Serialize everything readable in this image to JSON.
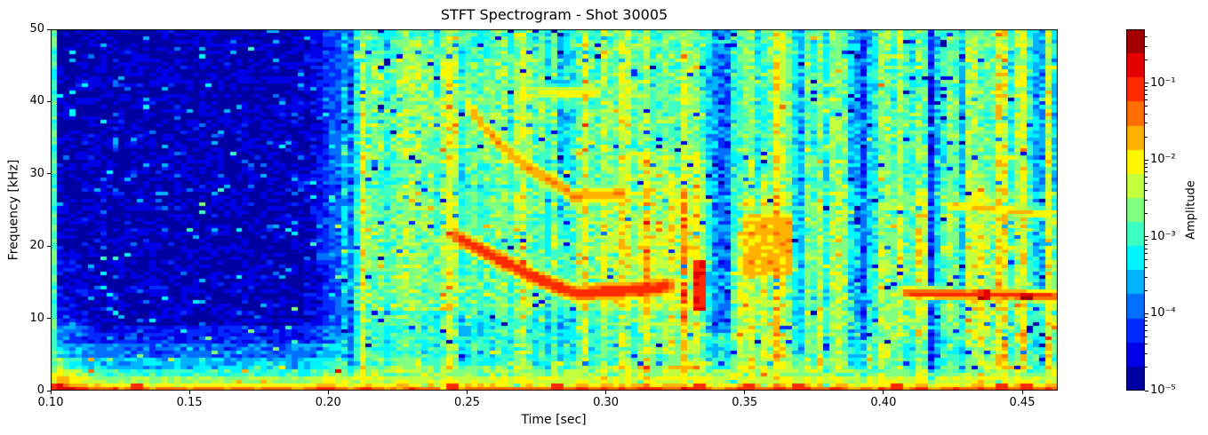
{
  "figure": {
    "title": "STFT Spectrogram - Shot 30005",
    "xlabel": "Time [sec]",
    "ylabel": "Frequency [kHz]",
    "colorbar_label": "Amplitude"
  },
  "chart_data": {
    "type": "heatmap",
    "variant": "stft_spectrogram",
    "title": "STFT Spectrogram - Shot 30005",
    "xlabel": "Time [sec]",
    "ylabel": "Frequency [kHz]",
    "xlim": [
      0.1,
      0.4628
    ],
    "ylim": [
      0,
      50
    ],
    "xticks": [
      0.1,
      0.15,
      0.2,
      0.25,
      0.3,
      0.35,
      0.4,
      0.45
    ],
    "xtick_labels": [
      "0.10",
      "0.15",
      "0.20",
      "0.25",
      "0.30",
      "0.35",
      "0.40",
      "0.45"
    ],
    "yticks": [
      0,
      10,
      20,
      30,
      40,
      50
    ],
    "ytick_labels": [
      "0",
      "10",
      "20",
      "30",
      "40",
      "50"
    ],
    "grid": false,
    "colorbar": {
      "label": "Amplitude",
      "scale": "log",
      "colormap": "jet",
      "discrete_levels": 15,
      "clim": [
        1e-05,
        0.5
      ],
      "tick_values": [
        0.1,
        0.01,
        0.001,
        0.0001,
        1e-05
      ],
      "tick_labels": [
        "10⁻¹",
        "10⁻²",
        "10⁻³",
        "10⁻⁴",
        "10⁻⁵"
      ]
    },
    "time_bins": 163,
    "freq_bins": 100,
    "model": {
      "seed": 7,
      "onset_time": 0.2055,
      "transition_width": 0.0025,
      "quiet_level": -4.75,
      "active_level": -2.85,
      "quiet_bottom_bands": [
        [
          0,
          0.6,
          -1.55
        ],
        [
          0.6,
          1.2,
          -2.1
        ],
        [
          1.2,
          2.2,
          -2.5
        ],
        [
          2.2,
          3.2,
          -2.95
        ],
        [
          3.2,
          4.5,
          -3.5
        ],
        [
          4.5,
          6.5,
          -3.95
        ],
        [
          6.5,
          9.0,
          -4.35
        ]
      ],
      "active_bottom_bands": [
        [
          0,
          0.6,
          -1.45
        ],
        [
          0.6,
          1.2,
          -2.0
        ],
        [
          1.2,
          2.2,
          -2.3
        ],
        [
          2.2,
          3.2,
          -2.6
        ],
        [
          3.2,
          4.2,
          -2.75
        ]
      ],
      "freq_profile": [
        {
          "t0": 0.205,
          "t1": 0.463,
          "f0": 28,
          "f1": 50,
          "delta": -0.15
        },
        {
          "t0": 0.215,
          "t1": 0.28,
          "f0": 32,
          "f1": 46,
          "delta": 0.2
        },
        {
          "t0": 0.205,
          "t1": 0.34,
          "f0": 3.5,
          "f1": 11,
          "delta": -0.3
        },
        {
          "t0": 0.405,
          "t1": 0.435,
          "f0": 2.5,
          "f1": 7,
          "delta": -0.35
        }
      ],
      "left_edge": {
        "t_end": 0.1025,
        "level": -2.9
      },
      "left_glow": {
        "t_ref": 0.118,
        "t_scale": 0.016,
        "amp": 0.9,
        "f_extent": 22
      },
      "onset_bump": {
        "t": 0.202,
        "sigma": 0.006,
        "amp": 0.5
      },
      "column_jitter": 0.45,
      "noise": {
        "quiet_amp": 0.5,
        "active_amp": 0.62,
        "outlier_prob": 0.045,
        "outlier_min": 0.5,
        "outlier_range": 1.1,
        "dark_cell_prob": 0.025,
        "bright_cell_prob": 0.02
      },
      "stripes_bright": [
        [
          0.2125,
          0.55,
          50
        ],
        [
          0.2268,
          0.6,
          50
        ],
        [
          0.2443,
          0.95,
          50
        ],
        [
          0.2532,
          0.5,
          50
        ],
        [
          0.2618,
          0.4,
          50
        ],
        [
          0.2705,
          0.45,
          50
        ],
        [
          0.2923,
          0.6,
          50
        ],
        [
          0.2988,
          0.55,
          50
        ],
        [
          0.3058,
          0.7,
          50
        ],
        [
          0.309,
          0.5,
          50
        ],
        [
          0.314,
          0.95,
          33
        ],
        [
          0.318,
          0.85,
          33
        ],
        [
          0.324,
          1.0,
          30
        ],
        [
          0.328,
          1.05,
          28
        ],
        [
          0.3335,
          1.0,
          33
        ],
        [
          0.348,
          0.75,
          22
        ],
        [
          0.352,
          0.6,
          50
        ],
        [
          0.357,
          0.9,
          30
        ],
        [
          0.3615,
          0.7,
          50
        ],
        [
          0.365,
          0.55,
          50
        ],
        [
          0.3776,
          0.55,
          50
        ],
        [
          0.3832,
          0.6,
          50
        ],
        [
          0.4,
          0.7,
          50
        ],
        [
          0.4063,
          0.5,
          50
        ],
        [
          0.4138,
          0.85,
          28
        ],
        [
          0.4244,
          0.6,
          50
        ],
        [
          0.4317,
          1.05,
          50
        ],
        [
          0.4355,
          0.8,
          30
        ],
        [
          0.443,
          1.25,
          50
        ],
        [
          0.4505,
          0.95,
          50
        ],
        [
          0.4596,
          0.85,
          50
        ]
      ],
      "stripes_dark": [
        [
          0.2082,
          -0.5,
          0.0012,
          0
        ],
        [
          0.221,
          -0.35,
          0.0012,
          20
        ],
        [
          0.2845,
          -0.75,
          0.0013,
          24
        ],
        [
          0.3415,
          -1.2,
          0.003,
          8
        ],
        [
          0.3535,
          -0.5,
          0.0012,
          22
        ],
        [
          0.3695,
          -0.8,
          0.0018,
          5
        ],
        [
          0.3925,
          -0.9,
          0.0028,
          7
        ],
        [
          0.4176,
          -1.05,
          0.0016,
          3
        ],
        [
          0.4285,
          -0.55,
          0.0012,
          10
        ],
        [
          0.456,
          -0.9,
          0.0013,
          14
        ],
        [
          0.4618,
          -0.85,
          0.0013,
          24
        ]
      ],
      "features": [
        {
          "name": "chirp-upper",
          "level": -1.55,
          "width": 0.9,
          "fade_in_until": 0.252,
          "fade_out_from": 0.306,
          "points": [
            [
              0.24,
              46.5
            ],
            [
              0.249,
              40.0
            ],
            [
              0.258,
              35.5
            ],
            [
              0.268,
              32.0
            ],
            [
              0.278,
              29.5
            ],
            [
              0.2845,
              28.1
            ],
            [
              0.2885,
              26.6
            ],
            [
              0.293,
              27.1
            ],
            [
              0.3,
              27.0
            ],
            [
              0.308,
              27.3
            ],
            [
              0.3155,
              27.6
            ]
          ]
        },
        {
          "name": "chirp-upper-echo",
          "level": -2.0,
          "width": 0.7,
          "fade_in_until": 0.276,
          "fade_out_from": 0.298,
          "points": [
            [
              0.272,
              41.4
            ],
            [
              0.286,
              41.1
            ],
            [
              0.302,
              41.2
            ]
          ]
        },
        {
          "name": "chirp-lower",
          "level": -1.0,
          "width": 0.85,
          "fade_in_until": 0.247,
          "fade_out_from": 0.323,
          "points": [
            [
              0.2375,
              23.2
            ],
            [
              0.246,
              21.2
            ],
            [
              0.2555,
              19.3
            ],
            [
              0.2645,
              17.6
            ],
            [
              0.2735,
              15.9
            ],
            [
              0.281,
              14.6
            ],
            [
              0.2865,
              13.8
            ],
            [
              0.291,
              13.3
            ],
            [
              0.2975,
              13.7
            ],
            [
              0.305,
              13.75
            ],
            [
              0.3125,
              14.05
            ],
            [
              0.321,
              14.35
            ],
            [
              0.33,
              14.6
            ]
          ]
        },
        {
          "name": "line-right-low",
          "level": -1.15,
          "width": 0.55,
          "fade_in_until": 0.408,
          "fade_out_from": 0.462,
          "points": [
            [
              0.402,
              13.6
            ],
            [
              0.425,
              13.3
            ],
            [
              0.447,
              13.2
            ],
            [
              0.4628,
              13.0
            ]
          ]
        },
        {
          "name": "line-right-mid",
          "level": -1.8,
          "width": 0.5,
          "fade_in_until": 0.424,
          "fade_out_from": 0.461,
          "points": [
            [
              0.42,
              25.8
            ],
            [
              0.44,
              25.1
            ],
            [
              0.4628,
              24.3
            ]
          ]
        }
      ],
      "blobs": [
        {
          "t0": 0.3495,
          "t1": 0.366,
          "f0": 16,
          "f1": 24.5,
          "level": -1.75
        },
        {
          "t0": 0.3315,
          "t1": 0.336,
          "f0": 11,
          "f1": 18,
          "level": -0.95
        },
        {
          "t0": 0.4345,
          "t1": 0.4385,
          "f0": 12.7,
          "f1": 13.9,
          "level": -0.75
        },
        {
          "t0": 0.45,
          "t1": 0.4545,
          "f0": 12.5,
          "f1": 13.7,
          "level": -0.75
        }
      ],
      "bottom_spots": [
        0.102,
        0.131,
        0.245,
        0.282,
        0.3345,
        0.352,
        0.37,
        0.405,
        0.443,
        0.452
      ]
    }
  }
}
